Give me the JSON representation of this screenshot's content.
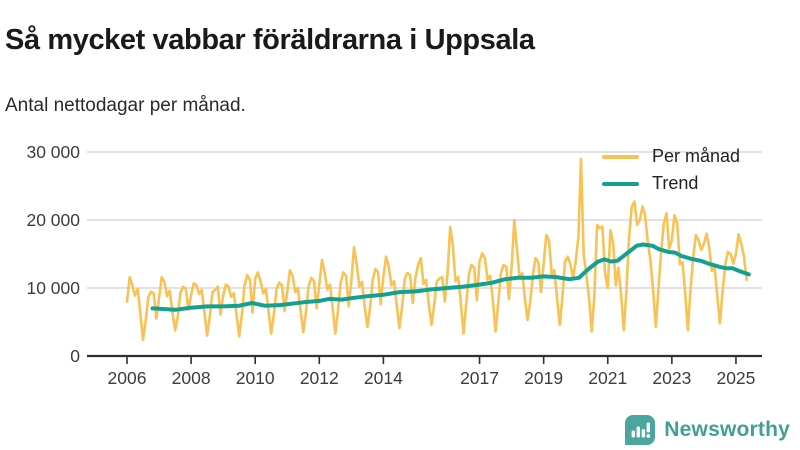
{
  "header": {
    "title": "Så mycket vabbar föräldrarna i Uppsala",
    "subtitle": "Antal nettodagar per månad."
  },
  "legend": [
    {
      "label": "Per månad",
      "color": "#F8C255"
    },
    {
      "label": "Trend",
      "color": "#12A191"
    }
  ],
  "footer": {
    "brand": "Newsworthy",
    "brand_color": "#41A096",
    "logo_icon": "bar-chart-speech-bubble-icon"
  },
  "colors": {
    "per_month_line": "#F8C255",
    "trend_line": "#12A191",
    "gridline": "#d9d9d9",
    "axis": "#2f2f2f",
    "tick_label": "#3d3d3d"
  },
  "chart_data": {
    "type": "line",
    "title": "Så mycket vabbar föräldrarna i Uppsala",
    "subtitle": "Antal nettodagar per månad.",
    "xlabel": "",
    "ylabel": "",
    "ylim": [
      0,
      30000
    ],
    "xlim": [
      2005.7,
      2025.8
    ],
    "grid": true,
    "legend_position": "top-right",
    "yticks": [
      {
        "value": 0,
        "label": "0"
      },
      {
        "value": 10000,
        "label": "10 000"
      },
      {
        "value": 20000,
        "label": "20 000"
      },
      {
        "value": 30000,
        "label": "30 000"
      }
    ],
    "xticks": [
      2006,
      2008,
      2010,
      2012,
      2014,
      2017,
      2019,
      2021,
      2023,
      2025
    ],
    "series": [
      {
        "name": "Per månad",
        "color": "#F8C255",
        "freq": "monthly",
        "start_year": 2006,
        "start_month": 1,
        "values": [
          8000,
          11600,
          10400,
          8900,
          9900,
          6200,
          2400,
          5200,
          8700,
          9450,
          9200,
          5500,
          8600,
          11600,
          10900,
          8800,
          9600,
          6500,
          3800,
          5600,
          9300,
          10200,
          9900,
          6800,
          9000,
          10700,
          10400,
          9100,
          9700,
          6300,
          3000,
          5800,
          9400,
          9700,
          10200,
          6100,
          8800,
          10500,
          10200,
          8700,
          9200,
          6100,
          2900,
          6000,
          10400,
          11900,
          11200,
          6400,
          11400,
          12300,
          11000,
          9200,
          9900,
          6500,
          3300,
          6200,
          9900,
          10800,
          10400,
          6600,
          9500,
          12600,
          11800,
          9400,
          10000,
          6700,
          3500,
          6400,
          10300,
          11500,
          11000,
          7000,
          10500,
          14100,
          12400,
          9800,
          10500,
          7000,
          3300,
          6700,
          10800,
          12300,
          11800,
          7300,
          11000,
          16000,
          13500,
          10200,
          10900,
          7300,
          4300,
          7000,
          11200,
          12800,
          12300,
          7600,
          11700,
          14600,
          13200,
          10400,
          11000,
          7400,
          4100,
          7200,
          11400,
          12200,
          11900,
          7800,
          11500,
          13400,
          14400,
          10600,
          11200,
          7600,
          4600,
          7400,
          11000,
          11400,
          11600,
          8000,
          12000,
          19000,
          16300,
          11000,
          11600,
          7800,
          3300,
          7600,
          12000,
          13400,
          13000,
          8200,
          13900,
          15100,
          14400,
          11200,
          11800,
          8000,
          3600,
          7800,
          12200,
          13400,
          13100,
          8400,
          13000,
          20000,
          15800,
          11600,
          12200,
          8300,
          5300,
          8100,
          12100,
          14400,
          13800,
          9400,
          13500,
          17800,
          17000,
          12000,
          12600,
          8600,
          4600,
          8400,
          13900,
          14600,
          13500,
          11400,
          13900,
          17500,
          29000,
          14900,
          11900,
          8500,
          3600,
          9000,
          19300,
          18800,
          19000,
          12000,
          10000,
          18500,
          16800,
          10400,
          13000,
          9000,
          3800,
          9500,
          17500,
          22000,
          22700,
          19300,
          20000,
          22000,
          20700,
          16800,
          14000,
          9500,
          4300,
          10000,
          15500,
          19500,
          21000,
          15800,
          17000,
          20700,
          19500,
          13500,
          13800,
          9200,
          3800,
          9800,
          14500,
          17800,
          17000,
          15600,
          16500,
          18000,
          16000,
          12500,
          13000,
          8800,
          4800,
          9500,
          13500,
          15300,
          15000,
          13600,
          15000,
          17900,
          16500,
          14600,
          11200
        ]
      },
      {
        "name": "Trend",
        "color": "#12A191",
        "freq": "anchors",
        "points": [
          [
            2006.8,
            7000
          ],
          [
            2007.0,
            6950
          ],
          [
            2007.5,
            6800
          ],
          [
            2008.0,
            7100
          ],
          [
            2008.5,
            7300
          ],
          [
            2009.0,
            7300
          ],
          [
            2009.5,
            7400
          ],
          [
            2009.9,
            7800
          ],
          [
            2010.3,
            7400
          ],
          [
            2010.8,
            7500
          ],
          [
            2011.5,
            7900
          ],
          [
            2012.0,
            8100
          ],
          [
            2012.3,
            8400
          ],
          [
            2012.7,
            8300
          ],
          [
            2013.0,
            8500
          ],
          [
            2013.5,
            8800
          ],
          [
            2014.0,
            9000
          ],
          [
            2014.5,
            9400
          ],
          [
            2015.0,
            9500
          ],
          [
            2015.5,
            9800
          ],
          [
            2016.0,
            10000
          ],
          [
            2016.5,
            10200
          ],
          [
            2017.0,
            10500
          ],
          [
            2017.4,
            10800
          ],
          [
            2017.8,
            11300
          ],
          [
            2018.2,
            11500
          ],
          [
            2018.6,
            11500
          ],
          [
            2019.0,
            11700
          ],
          [
            2019.4,
            11600
          ],
          [
            2019.8,
            11300
          ],
          [
            2020.1,
            11500
          ],
          [
            2020.4,
            12800
          ],
          [
            2020.7,
            13900
          ],
          [
            2020.9,
            14200
          ],
          [
            2021.1,
            13900
          ],
          [
            2021.3,
            14000
          ],
          [
            2021.6,
            15100
          ],
          [
            2021.9,
            16200
          ],
          [
            2022.1,
            16400
          ],
          [
            2022.4,
            16200
          ],
          [
            2022.6,
            15700
          ],
          [
            2022.9,
            15300
          ],
          [
            2023.1,
            15200
          ],
          [
            2023.3,
            14700
          ],
          [
            2023.6,
            14300
          ],
          [
            2023.9,
            14000
          ],
          [
            2024.2,
            13500
          ],
          [
            2024.5,
            13100
          ],
          [
            2024.7,
            12900
          ],
          [
            2024.9,
            12900
          ],
          [
            2025.1,
            12500
          ],
          [
            2025.4,
            12000
          ]
        ]
      }
    ]
  }
}
